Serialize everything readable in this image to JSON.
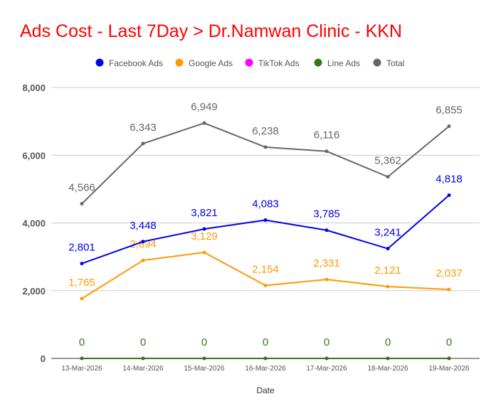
{
  "chart_data": {
    "type": "line",
    "title": "Ads Cost - Last 7Day > Dr.Namwan Clinic - KKN",
    "xlabel": "Date",
    "ylabel": "",
    "ylim": [
      0,
      8000
    ],
    "yticks": [
      0,
      2000,
      4000,
      6000,
      8000
    ],
    "ytick_labels": [
      "0",
      "2,000",
      "4,000",
      "6,000",
      "8,000"
    ],
    "grid": true,
    "legend_position": "top-center",
    "categories": [
      "13-Mar-2026",
      "14-Mar-2026",
      "15-Mar-2026",
      "16-Mar-2026",
      "17-Mar-2026",
      "18-Mar-2026",
      "19-Mar-2026"
    ],
    "series": [
      {
        "name": "Facebook Ads",
        "color": "#0000ee",
        "values": [
          2801,
          3448,
          3821,
          4083,
          3785,
          3241,
          4818
        ],
        "labels": [
          "2,801",
          "3,448",
          "3,821",
          "4,083",
          "3,785",
          "3,241",
          "4,818"
        ]
      },
      {
        "name": "Google Ads",
        "color": "#ff9900",
        "values": [
          1765,
          2894,
          3129,
          2154,
          2331,
          2121,
          2037
        ],
        "labels": [
          "1,765",
          "2,894",
          "3,129",
          "2,154",
          "2,331",
          "2,121",
          "2,037"
        ]
      },
      {
        "name": "TikTok Ads",
        "color": "#ff00ff",
        "values": [
          0,
          0,
          0,
          0,
          0,
          0,
          0
        ],
        "labels": []
      },
      {
        "name": "Line Ads",
        "color": "#38761d",
        "values": [
          0,
          0,
          0,
          0,
          0,
          0,
          0
        ],
        "labels": [
          "0",
          "0",
          "0",
          "0",
          "0",
          "0",
          "0"
        ]
      },
      {
        "name": "Total",
        "color": "#666666",
        "values": [
          4566,
          6343,
          6949,
          6238,
          6116,
          5362,
          6855
        ],
        "labels": [
          "4,566",
          "6,343",
          "6,949",
          "6,238",
          "6,116",
          "5,362",
          "6,855"
        ]
      }
    ]
  }
}
